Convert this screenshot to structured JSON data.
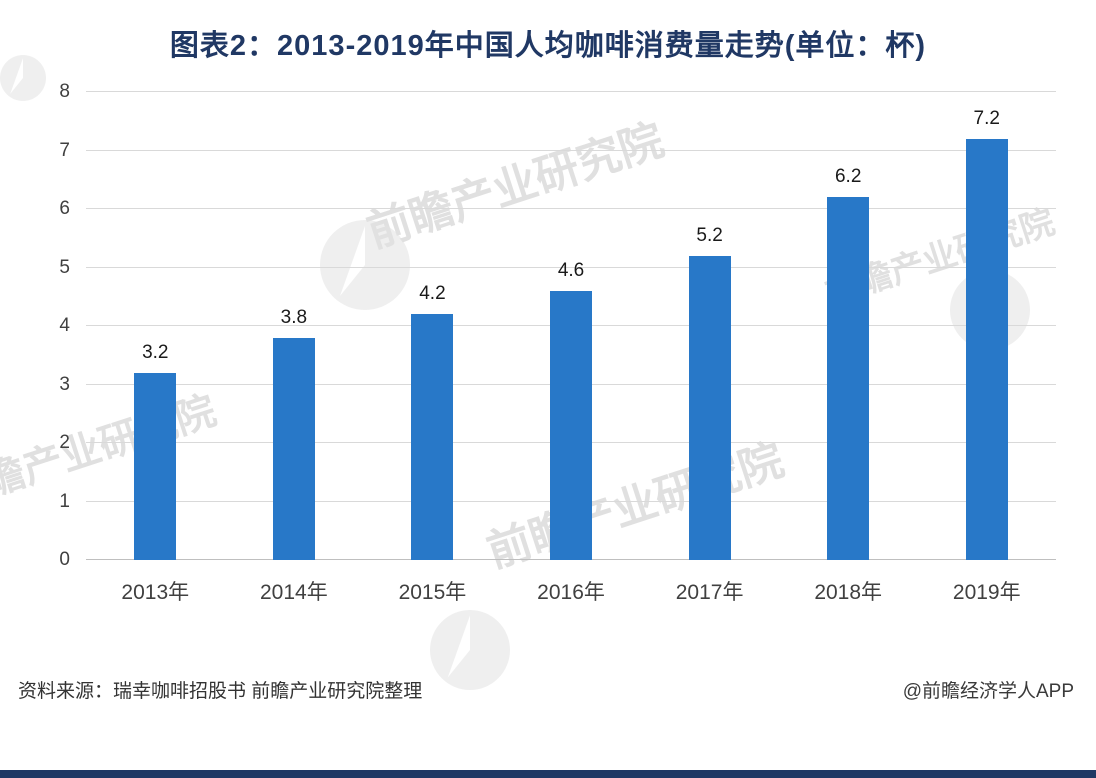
{
  "title": "图表2：2013-2019年中国人均咖啡消费量走势(单位：杯)",
  "chart_data": {
    "type": "bar",
    "title": "图表2：2013-2019年中国人均咖啡消费量走势(单位：杯)",
    "categories": [
      "2013年",
      "2014年",
      "2015年",
      "2016年",
      "2017年",
      "2018年",
      "2019年"
    ],
    "values": [
      3.2,
      3.8,
      4.2,
      4.6,
      5.2,
      6.2,
      7.2
    ],
    "xlabel": "",
    "ylabel": "",
    "ylim": [
      0,
      8
    ],
    "ytick_step": 1,
    "grid": "horizontal",
    "legend": "none",
    "bar_color": "#2878c8"
  },
  "footer": {
    "source": "资料来源：瑞幸咖啡招股书 前瞻产业研究院整理",
    "credit": "@前瞻经济学人APP"
  },
  "watermark": {
    "text": "前瞻产业研究院"
  },
  "colors": {
    "title": "#203864",
    "bar": "#2878c8",
    "gridline": "#d9d9d9",
    "bottom_strip": "#1f3864"
  }
}
